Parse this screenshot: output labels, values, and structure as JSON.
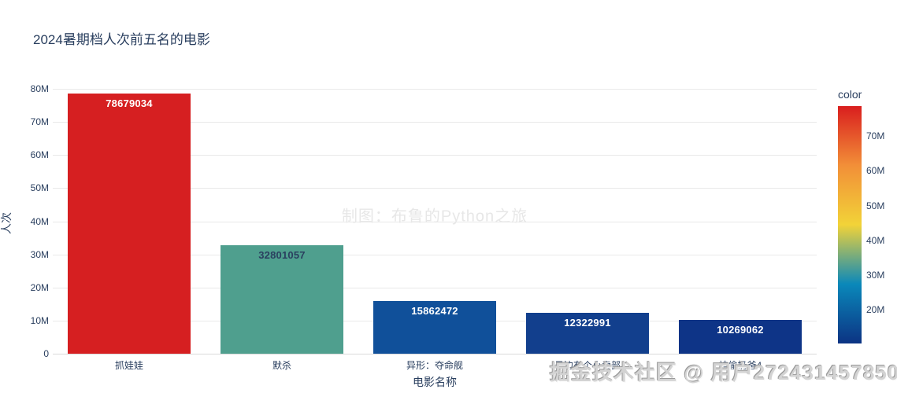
{
  "title": "2024暑期档人次前五名的电影",
  "watermarks": {
    "center": "制图：布鲁的Python之旅",
    "bottom": "掘金技术社区 @ 用户2724314578501"
  },
  "colors": {
    "text": "#2a3f5f",
    "grid": "#e9e9e9",
    "background": "#ffffff"
  },
  "chart_data": {
    "type": "bar",
    "title": "2024暑期档人次前五名的电影",
    "xlabel": "电影名称",
    "ylabel": "人次",
    "categories": [
      "抓娃娃",
      "默杀",
      "异形：夺命舰",
      "云边有个小卖部",
      "神偷奶爸4"
    ],
    "values": [
      78679034,
      32801057,
      15862472,
      12322991,
      10269062
    ],
    "bar_labels": [
      "78679034",
      "32801057",
      "15862472",
      "12322991",
      "10269062"
    ],
    "bar_colors": [
      "#d61f21",
      "#4f9f8e",
      "#10509a",
      "#123f8d",
      "#0e3487"
    ],
    "bar_label_colors": [
      "#ffffff",
      "#2a3f5f",
      "#ffffff",
      "#ffffff",
      "#ffffff"
    ],
    "ylim": [
      0,
      80000000
    ],
    "yticks": [
      {
        "v": 0,
        "label": "0"
      },
      {
        "v": 10000000,
        "label": "10M"
      },
      {
        "v": 20000000,
        "label": "20M"
      },
      {
        "v": 30000000,
        "label": "30M"
      },
      {
        "v": 40000000,
        "label": "40M"
      },
      {
        "v": 50000000,
        "label": "50M"
      },
      {
        "v": 60000000,
        "label": "60M"
      },
      {
        "v": 70000000,
        "label": "70M"
      },
      {
        "v": 80000000,
        "label": "80M"
      }
    ],
    "grid": true,
    "legend_position": "right-colorbar",
    "colorbar": {
      "title": "color",
      "min": 10269062,
      "max": 78679034,
      "colorscale": [
        "#0c3383",
        "#0a88ba",
        "#f2d338",
        "#f28f38",
        "#d91e1e"
      ],
      "ticks": [
        {
          "v": 20000000,
          "label": "20M"
        },
        {
          "v": 30000000,
          "label": "30M"
        },
        {
          "v": 40000000,
          "label": "40M"
        },
        {
          "v": 50000000,
          "label": "50M"
        },
        {
          "v": 60000000,
          "label": "60M"
        },
        {
          "v": 70000000,
          "label": "70M"
        }
      ]
    }
  }
}
